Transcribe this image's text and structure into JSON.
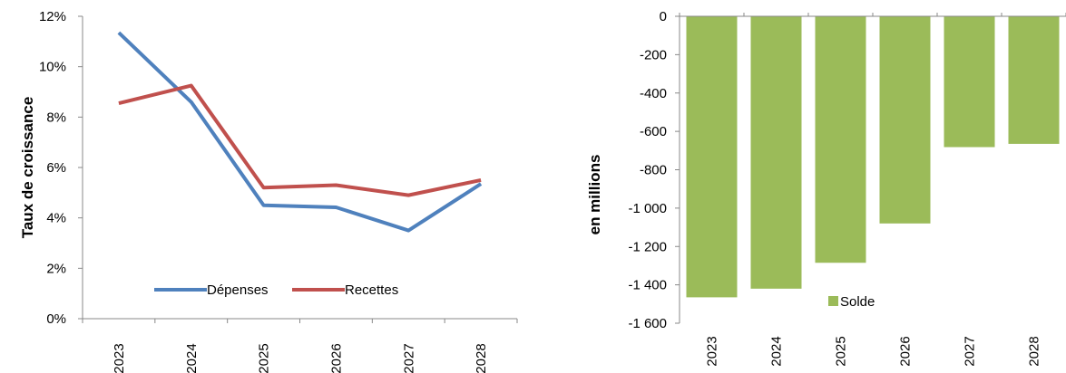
{
  "chart_data": [
    {
      "type": "line",
      "categories": [
        "2023",
        "2024",
        "2025",
        "2026",
        "2027",
        "2028"
      ],
      "ylabel": "Taux de croissance",
      "ylim": [
        0,
        12
      ],
      "yticks": [
        "0%",
        "2%",
        "4%",
        "6%",
        "8%",
        "10%",
        "12%"
      ],
      "grid": false,
      "legend_position": "bottom-right",
      "series": [
        {
          "name": "Dépenses",
          "color": "#4F81BD",
          "values": [
            11.35,
            8.6,
            4.5,
            4.42,
            3.5,
            5.35
          ]
        },
        {
          "name": "Recettes",
          "color": "#C0504D",
          "values": [
            8.55,
            9.25,
            5.2,
            5.3,
            4.9,
            5.5
          ]
        }
      ]
    },
    {
      "type": "bar",
      "categories": [
        "2023",
        "2024",
        "2025",
        "2026",
        "2027",
        "2028"
      ],
      "ylabel": "en millions",
      "ylim": [
        -1600,
        0
      ],
      "yticks": [
        "0",
        "-200",
        "-400",
        "-600",
        "-800",
        "-1 000",
        "-1 200",
        "-1 400",
        "-1 600"
      ],
      "grid": false,
      "legend_position": "bottom-center",
      "series": [
        {
          "name": "Solde",
          "color": "#9BBB59",
          "values": [
            -1465,
            -1420,
            -1285,
            -1080,
            -682,
            -665
          ]
        }
      ]
    }
  ]
}
